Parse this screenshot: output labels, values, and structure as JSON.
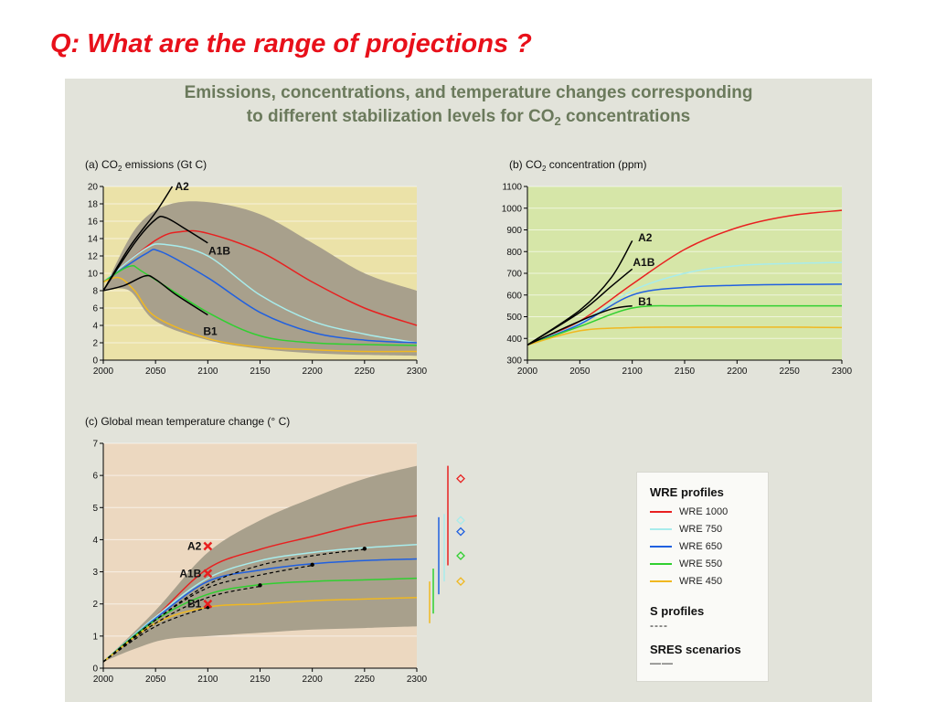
{
  "slide": {
    "question": "Q:  What are the range of projections ?"
  },
  "figure": {
    "title_line1": "Emissions, concentrations, and temperature changes corresponding",
    "title_line2_pre": "to different stabilization levels for CO",
    "title_line2_sub": "2",
    "title_line2_post": " concentrations"
  },
  "colors": {
    "panel": "#e2e3da",
    "plot_a": "#ebe2a8",
    "plot_b": "#d6e6a8",
    "plot_c": "#ecd8c0",
    "band": "#a8a08c",
    "wre1000": "#e82020",
    "wre750": "#a8ecec",
    "wre650": "#2060e0",
    "wre550": "#30d030",
    "wre450": "#f0b820",
    "sres": "#000000",
    "cross": "#e82020"
  },
  "legend": {
    "wre_title": "WRE profiles",
    "items": [
      {
        "label": "WRE 1000",
        "color": "#e82020"
      },
      {
        "label": "WRE 750",
        "color": "#a8ecec"
      },
      {
        "label": "WRE 650",
        "color": "#2060e0"
      },
      {
        "label": "WRE 550",
        "color": "#30d030"
      },
      {
        "label": "WRE 450",
        "color": "#f0b820"
      }
    ],
    "s_title": "S profiles",
    "s_sample": "----",
    "sres_title": "SRES scenarios",
    "sres_sample": "——"
  },
  "chart_data": [
    {
      "id": "a",
      "type": "line",
      "title_pre": "(a) CO",
      "title_sub": "2",
      "title_post": " emissions (Gt C)",
      "xlim": [
        2000,
        2300
      ],
      "ylim": [
        0,
        20
      ],
      "xticks": [
        2000,
        2050,
        2100,
        2150,
        2200,
        2250,
        2300
      ],
      "yticks": [
        0,
        2,
        4,
        6,
        8,
        10,
        12,
        14,
        16,
        18,
        20
      ],
      "band": {
        "upper": [
          [
            2000,
            8
          ],
          [
            2030,
            15
          ],
          [
            2060,
            17.8
          ],
          [
            2100,
            18.2
          ],
          [
            2150,
            16.8
          ],
          [
            2200,
            13.5
          ],
          [
            2250,
            10
          ],
          [
            2300,
            8
          ]
        ],
        "lower": [
          [
            2000,
            8
          ],
          [
            2025,
            8
          ],
          [
            2050,
            4.5
          ],
          [
            2100,
            2.3
          ],
          [
            2150,
            1.3
          ],
          [
            2200,
            0.8
          ],
          [
            2250,
            0.6
          ],
          [
            2300,
            0.5
          ]
        ]
      },
      "series": [
        {
          "name": "WRE 1000",
          "color": "#e82020",
          "points": [
            [
              2000,
              9
            ],
            [
              2050,
              13.8
            ],
            [
              2075,
              14.8
            ],
            [
              2100,
              14.6
            ],
            [
              2150,
              12.5
            ],
            [
              2200,
              9
            ],
            [
              2250,
              6
            ],
            [
              2300,
              4
            ]
          ]
        },
        {
          "name": "WRE 750",
          "color": "#a8ecec",
          "points": [
            [
              2000,
              9
            ],
            [
              2040,
              12.8
            ],
            [
              2060,
              13.3
            ],
            [
              2100,
              12
            ],
            [
              2150,
              7.5
            ],
            [
              2200,
              4.5
            ],
            [
              2250,
              3
            ],
            [
              2300,
              2
            ]
          ]
        },
        {
          "name": "WRE 650",
          "color": "#2060e0",
          "points": [
            [
              2000,
              9
            ],
            [
              2040,
              12.2
            ],
            [
              2055,
              12.5
            ],
            [
              2100,
              9.5
            ],
            [
              2150,
              5.5
            ],
            [
              2200,
              3.2
            ],
            [
              2250,
              2.3
            ],
            [
              2300,
              2
            ]
          ]
        },
        {
          "name": "WRE 550",
          "color": "#30d030",
          "points": [
            [
              2000,
              9
            ],
            [
              2025,
              10.8
            ],
            [
              2040,
              10
            ],
            [
              2100,
              5.5
            ],
            [
              2150,
              2.8
            ],
            [
              2200,
              2
            ],
            [
              2250,
              1.8
            ],
            [
              2300,
              1.7
            ]
          ]
        },
        {
          "name": "WRE 450",
          "color": "#f0b820",
          "points": [
            [
              2000,
              9
            ],
            [
              2015,
              9.5
            ],
            [
              2030,
              8
            ],
            [
              2050,
              5
            ],
            [
              2100,
              2.5
            ],
            [
              2150,
              1.5
            ],
            [
              2200,
              1.2
            ],
            [
              2250,
              1
            ],
            [
              2300,
              1
            ]
          ]
        },
        {
          "name": "A2",
          "color": "#000000",
          "points": [
            [
              2000,
              8
            ],
            [
              2025,
              13
            ],
            [
              2050,
              17
            ],
            [
              2066,
              20
            ]
          ]
        },
        {
          "name": "SRES A1 (upper)",
          "color": "#000000",
          "points": [
            [
              2000,
              8
            ],
            [
              2030,
              13.5
            ],
            [
              2050,
              16.2
            ],
            [
              2060,
              16.4
            ],
            [
              2080,
              15
            ],
            [
              2100,
              13.5
            ]
          ]
        },
        {
          "name": "B1",
          "color": "#000000",
          "points": [
            [
              2000,
              8
            ],
            [
              2020,
              8.6
            ],
            [
              2040,
              9.7
            ],
            [
              2050,
              9.3
            ],
            [
              2070,
              7.5
            ],
            [
              2100,
              5.2
            ]
          ]
        }
      ],
      "labels": [
        {
          "text": "A2",
          "x": 2066,
          "y": 20
        },
        {
          "text": "A1B",
          "x": 2098,
          "y": 12.6
        },
        {
          "text": "B1",
          "x": 2093,
          "y": 3.3
        }
      ]
    },
    {
      "id": "b",
      "type": "line",
      "title_pre": "(b) CO",
      "title_sub": "2",
      "title_post": " concentration (ppm)",
      "xlim": [
        2000,
        2300
      ],
      "ylim": [
        300,
        1100
      ],
      "xticks": [
        2000,
        2050,
        2100,
        2150,
        2200,
        2250,
        2300
      ],
      "yticks": [
        300,
        400,
        500,
        600,
        700,
        800,
        900,
        1000,
        1100
      ],
      "series": [
        {
          "name": "WRE 1000",
          "color": "#e82020",
          "points": [
            [
              2000,
              370
            ],
            [
              2050,
              480
            ],
            [
              2100,
              650
            ],
            [
              2150,
              810
            ],
            [
              2200,
              910
            ],
            [
              2250,
              965
            ],
            [
              2300,
              990
            ]
          ]
        },
        {
          "name": "WRE 750",
          "color": "#a8ecec",
          "points": [
            [
              2000,
              370
            ],
            [
              2050,
              470
            ],
            [
              2100,
              620
            ],
            [
              2150,
              700
            ],
            [
              2200,
              735
            ],
            [
              2250,
              745
            ],
            [
              2300,
              750
            ]
          ]
        },
        {
          "name": "WRE 650",
          "color": "#2060e0",
          "points": [
            [
              2000,
              370
            ],
            [
              2050,
              465
            ],
            [
              2100,
              600
            ],
            [
              2150,
              635
            ],
            [
              2200,
              645
            ],
            [
              2250,
              648
            ],
            [
              2300,
              650
            ]
          ]
        },
        {
          "name": "WRE 550",
          "color": "#30d030",
          "points": [
            [
              2000,
              370
            ],
            [
              2050,
              455
            ],
            [
              2100,
              540
            ],
            [
              2150,
              550
            ],
            [
              2200,
              550
            ],
            [
              2300,
              550
            ]
          ]
        },
        {
          "name": "WRE 450",
          "color": "#f0b820",
          "points": [
            [
              2000,
              370
            ],
            [
              2050,
              435
            ],
            [
              2100,
              450
            ],
            [
              2150,
              452
            ],
            [
              2200,
              452
            ],
            [
              2250,
              452
            ],
            [
              2300,
              450
            ]
          ]
        },
        {
          "name": "A2",
          "color": "#000000",
          "points": [
            [
              2000,
              370
            ],
            [
              2050,
              530
            ],
            [
              2080,
              680
            ],
            [
              2100,
              850
            ]
          ]
        },
        {
          "name": "A1B",
          "color": "#000000",
          "points": [
            [
              2000,
              370
            ],
            [
              2050,
              520
            ],
            [
              2080,
              640
            ],
            [
              2100,
              720
            ]
          ]
        },
        {
          "name": "B1",
          "color": "#000000",
          "points": [
            [
              2000,
              370
            ],
            [
              2050,
              480
            ],
            [
              2080,
              535
            ],
            [
              2100,
              550
            ]
          ]
        }
      ],
      "labels": [
        {
          "text": "A2",
          "x": 2103,
          "y": 865
        },
        {
          "text": "A1B",
          "x": 2098,
          "y": 750
        },
        {
          "text": "B1",
          "x": 2103,
          "y": 570
        }
      ]
    },
    {
      "id": "c",
      "type": "line",
      "title": "(c) Global mean temperature change (° C)",
      "xlim": [
        2000,
        2300
      ],
      "ylim": [
        0,
        7
      ],
      "xticks": [
        2000,
        2050,
        2100,
        2150,
        2200,
        2250,
        2300
      ],
      "yticks": [
        0,
        1,
        2,
        3,
        4,
        5,
        6,
        7
      ],
      "band": {
        "upper": [
          [
            2000,
            0.2
          ],
          [
            2050,
            1.8
          ],
          [
            2100,
            3.6
          ],
          [
            2150,
            4.6
          ],
          [
            2200,
            5.3
          ],
          [
            2250,
            5.9
          ],
          [
            2300,
            6.3
          ]
        ],
        "lower": [
          [
            2000,
            0.2
          ],
          [
            2030,
            0.6
          ],
          [
            2060,
            0.9
          ],
          [
            2100,
            1
          ],
          [
            2150,
            1.1
          ],
          [
            2200,
            1.2
          ],
          [
            2250,
            1.25
          ],
          [
            2300,
            1.3
          ]
        ]
      },
      "series": [
        {
          "name": "WRE 1000",
          "color": "#e82020",
          "points": [
            [
              2000,
              0.2
            ],
            [
              2050,
              1.6
            ],
            [
              2100,
              3.1
            ],
            [
              2150,
              3.7
            ],
            [
              2200,
              4.1
            ],
            [
              2250,
              4.5
            ],
            [
              2300,
              4.75
            ]
          ]
        },
        {
          "name": "WRE 750",
          "color": "#a8ecec",
          "points": [
            [
              2000,
              0.2
            ],
            [
              2050,
              1.6
            ],
            [
              2100,
              2.8
            ],
            [
              2150,
              3.35
            ],
            [
              2200,
              3.6
            ],
            [
              2250,
              3.75
            ],
            [
              2300,
              3.85
            ]
          ]
        },
        {
          "name": "WRE 650",
          "color": "#2060e0",
          "points": [
            [
              2000,
              0.2
            ],
            [
              2050,
              1.55
            ],
            [
              2100,
              2.7
            ],
            [
              2150,
              3.05
            ],
            [
              2200,
              3.25
            ],
            [
              2250,
              3.35
            ],
            [
              2300,
              3.4
            ]
          ]
        },
        {
          "name": "WRE 550",
          "color": "#30d030",
          "points": [
            [
              2000,
              0.2
            ],
            [
              2050,
              1.5
            ],
            [
              2100,
              2.3
            ],
            [
              2150,
              2.6
            ],
            [
              2200,
              2.7
            ],
            [
              2250,
              2.75
            ],
            [
              2300,
              2.8
            ]
          ]
        },
        {
          "name": "WRE 450",
          "color": "#f0b820",
          "points": [
            [
              2000,
              0.2
            ],
            [
              2050,
              1.4
            ],
            [
              2100,
              1.9
            ],
            [
              2150,
              2
            ],
            [
              2200,
              2.1
            ],
            [
              2250,
              2.15
            ],
            [
              2300,
              2.2
            ]
          ]
        }
      ],
      "s_profiles": [
        {
          "points": [
            [
              2000,
              0.2
            ],
            [
              2050,
              1.5
            ],
            [
              2100,
              2.6
            ],
            [
              2150,
              3.2
            ],
            [
              2200,
              3.5
            ],
            [
              2250,
              3.7
            ]
          ],
          "end": [
            2250,
            3.72
          ]
        },
        {
          "points": [
            [
              2000,
              0.2
            ],
            [
              2050,
              1.5
            ],
            [
              2100,
              2.5
            ],
            [
              2150,
              2.9
            ],
            [
              2200,
              3.2
            ]
          ],
          "end": [
            2200,
            3.22
          ]
        },
        {
          "points": [
            [
              2000,
              0.2
            ],
            [
              2050,
              1.4
            ],
            [
              2100,
              2.2
            ],
            [
              2150,
              2.55
            ]
          ],
          "end": [
            2150,
            2.58
          ]
        },
        {
          "points": [
            [
              2000,
              0.2
            ],
            [
              2050,
              1.3
            ],
            [
              2100,
              1.9
            ]
          ],
          "end": [
            2100,
            1.9
          ]
        }
      ],
      "sres_crosses": [
        {
          "text": "A2",
          "x": 2100,
          "y": 3.8
        },
        {
          "text": "A1B",
          "x": 2100,
          "y": 2.95
        },
        {
          "text": "B1",
          "x": 2100,
          "y": 2
        }
      ],
      "bars": [
        {
          "color": "#e82020",
          "low": 3.2,
          "high": 6.3,
          "marker": 5.9
        },
        {
          "color": "#a8ecec",
          "low": 2.7,
          "high": 4.8,
          "marker": 4.6
        },
        {
          "color": "#2060e0",
          "low": 2.3,
          "high": 4.7,
          "marker": 4.25
        },
        {
          "color": "#30d030",
          "low": 1.7,
          "high": 3.1,
          "marker": 3.5
        },
        {
          "color": "#f0b820",
          "low": 1.4,
          "high": 2.7,
          "marker": 2.7
        }
      ]
    }
  ]
}
